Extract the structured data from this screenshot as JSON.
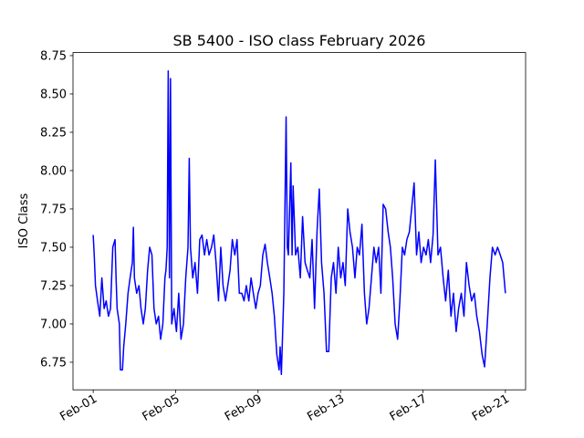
{
  "chart_data": {
    "type": "line",
    "title": "SB 5400 - ISO class February 2026",
    "ylabel": "ISO Class",
    "x": [
      1.0,
      1.05,
      1.11,
      1.21,
      1.32,
      1.42,
      1.53,
      1.63,
      1.74,
      1.84,
      1.95,
      2.06,
      2.11,
      2.16,
      2.27,
      2.32,
      2.42,
      2.48,
      2.58,
      2.69,
      2.79,
      2.9,
      2.95,
      3.0,
      3.11,
      3.22,
      3.32,
      3.43,
      3.53,
      3.64,
      3.74,
      3.85,
      3.95,
      4.06,
      4.17,
      4.27,
      4.38,
      4.48,
      4.53,
      4.59,
      4.64,
      4.7,
      4.75,
      4.81,
      4.92,
      5.04,
      5.15,
      5.26,
      5.38,
      5.49,
      5.6,
      5.66,
      5.72,
      5.83,
      5.94,
      6.06,
      6.17,
      6.28,
      6.4,
      6.51,
      6.62,
      6.74,
      6.85,
      6.96,
      7.08,
      7.19,
      7.3,
      7.42,
      7.53,
      7.64,
      7.75,
      7.87,
      7.98,
      8.09,
      8.21,
      8.32,
      8.43,
      8.55,
      8.66,
      8.77,
      8.89,
      9.0,
      9.11,
      9.23,
      9.34,
      9.45,
      9.57,
      9.68,
      9.79,
      9.91,
      10.02,
      10.07,
      10.13,
      10.25,
      10.36,
      10.42,
      10.47,
      10.59,
      10.65,
      10.7,
      10.82,
      10.93,
      11.05,
      11.16,
      11.28,
      11.39,
      11.51,
      11.62,
      11.74,
      11.86,
      11.97,
      12.08,
      12.2,
      12.32,
      12.43,
      12.55,
      12.66,
      12.78,
      12.89,
      13.01,
      13.12,
      13.23,
      13.35,
      13.46,
      13.58,
      13.7,
      13.81,
      13.92,
      14.04,
      14.16,
      14.27,
      14.38,
      14.5,
      14.62,
      14.73,
      14.85,
      14.96,
      15.07,
      15.19,
      15.31,
      15.42,
      15.53,
      15.65,
      15.77,
      15.88,
      16.0,
      16.11,
      16.22,
      16.34,
      16.45,
      16.57,
      16.69,
      16.8,
      16.91,
      17.03,
      17.15,
      17.26,
      17.37,
      17.49,
      17.6,
      17.73,
      17.85,
      17.98,
      18.1,
      18.23,
      18.36,
      18.48,
      18.61,
      18.73,
      18.86,
      18.99,
      19.11,
      19.24,
      19.36,
      19.49,
      19.61,
      19.74,
      19.87,
      19.99,
      20.12,
      20.25,
      20.37,
      20.5,
      20.62,
      20.75,
      20.87,
      21.0
    ],
    "series": [
      {
        "name": "ISO Class",
        "color": "#0000ff",
        "values": [
          7.58,
          7.45,
          7.25,
          7.15,
          7.05,
          7.3,
          7.1,
          7.15,
          7.05,
          7.1,
          7.5,
          7.55,
          7.3,
          7.1,
          7.0,
          6.7,
          6.7,
          6.85,
          7.0,
          7.2,
          7.3,
          7.4,
          7.63,
          7.3,
          7.2,
          7.25,
          7.1,
          7.0,
          7.1,
          7.35,
          7.5,
          7.45,
          7.1,
          7.0,
          7.05,
          6.9,
          7.0,
          7.3,
          7.35,
          7.5,
          8.65,
          7.3,
          8.6,
          7.0,
          7.1,
          6.95,
          7.2,
          6.9,
          7.0,
          7.3,
          7.5,
          8.08,
          7.5,
          7.3,
          7.4,
          7.2,
          7.55,
          7.58,
          7.45,
          7.55,
          7.45,
          7.5,
          7.58,
          7.4,
          7.15,
          7.5,
          7.25,
          7.15,
          7.25,
          7.35,
          7.55,
          7.45,
          7.55,
          7.2,
          7.2,
          7.15,
          7.25,
          7.15,
          7.3,
          7.2,
          7.1,
          7.2,
          7.25,
          7.45,
          7.52,
          7.4,
          7.3,
          7.2,
          7.05,
          6.8,
          6.7,
          6.85,
          6.67,
          7.2,
          8.35,
          7.5,
          7.45,
          8.05,
          7.45,
          7.9,
          7.45,
          7.5,
          7.3,
          7.7,
          7.4,
          7.35,
          7.3,
          7.55,
          7.1,
          7.6,
          7.88,
          7.4,
          7.2,
          6.82,
          6.82,
          7.3,
          7.4,
          7.2,
          7.5,
          7.3,
          7.4,
          7.25,
          7.75,
          7.6,
          7.5,
          7.3,
          7.5,
          7.45,
          7.65,
          7.2,
          7.0,
          7.1,
          7.3,
          7.5,
          7.4,
          7.5,
          7.2,
          7.78,
          7.75,
          7.6,
          7.5,
          7.3,
          7.0,
          6.9,
          7.15,
          7.5,
          7.45,
          7.55,
          7.6,
          7.75,
          7.92,
          7.45,
          7.6,
          7.4,
          7.5,
          7.45,
          7.55,
          7.4,
          7.58,
          8.07,
          7.45,
          7.5,
          7.3,
          7.15,
          7.35,
          7.05,
          7.2,
          6.95,
          7.1,
          7.2,
          7.05,
          7.4,
          7.25,
          7.15,
          7.2,
          7.05,
          6.95,
          6.8,
          6.72,
          7.0,
          7.3,
          7.5,
          7.45,
          7.5,
          7.45,
          7.4,
          7.2
        ]
      }
    ],
    "xlim": [
      0.02,
      21.98
    ],
    "xticks": [
      {
        "value": 1,
        "label": "Feb-01"
      },
      {
        "value": 5,
        "label": "Feb-05"
      },
      {
        "value": 9,
        "label": "Feb-09"
      },
      {
        "value": 13,
        "label": "Feb-13"
      },
      {
        "value": 17,
        "label": "Feb-17"
      },
      {
        "value": 21,
        "label": "Feb-21"
      }
    ],
    "ylim": [
      6.57,
      8.77
    ],
    "yticks": [
      6.75,
      {
        "value": 7,
        "label": "7.00"
      },
      7.25,
      {
        "value": 7.5,
        "label": "7.50"
      },
      7.75,
      {
        "value": 8,
        "label": "8.00"
      },
      8.25,
      {
        "value": 8.5,
        "label": "8.50"
      },
      8.75
    ]
  }
}
